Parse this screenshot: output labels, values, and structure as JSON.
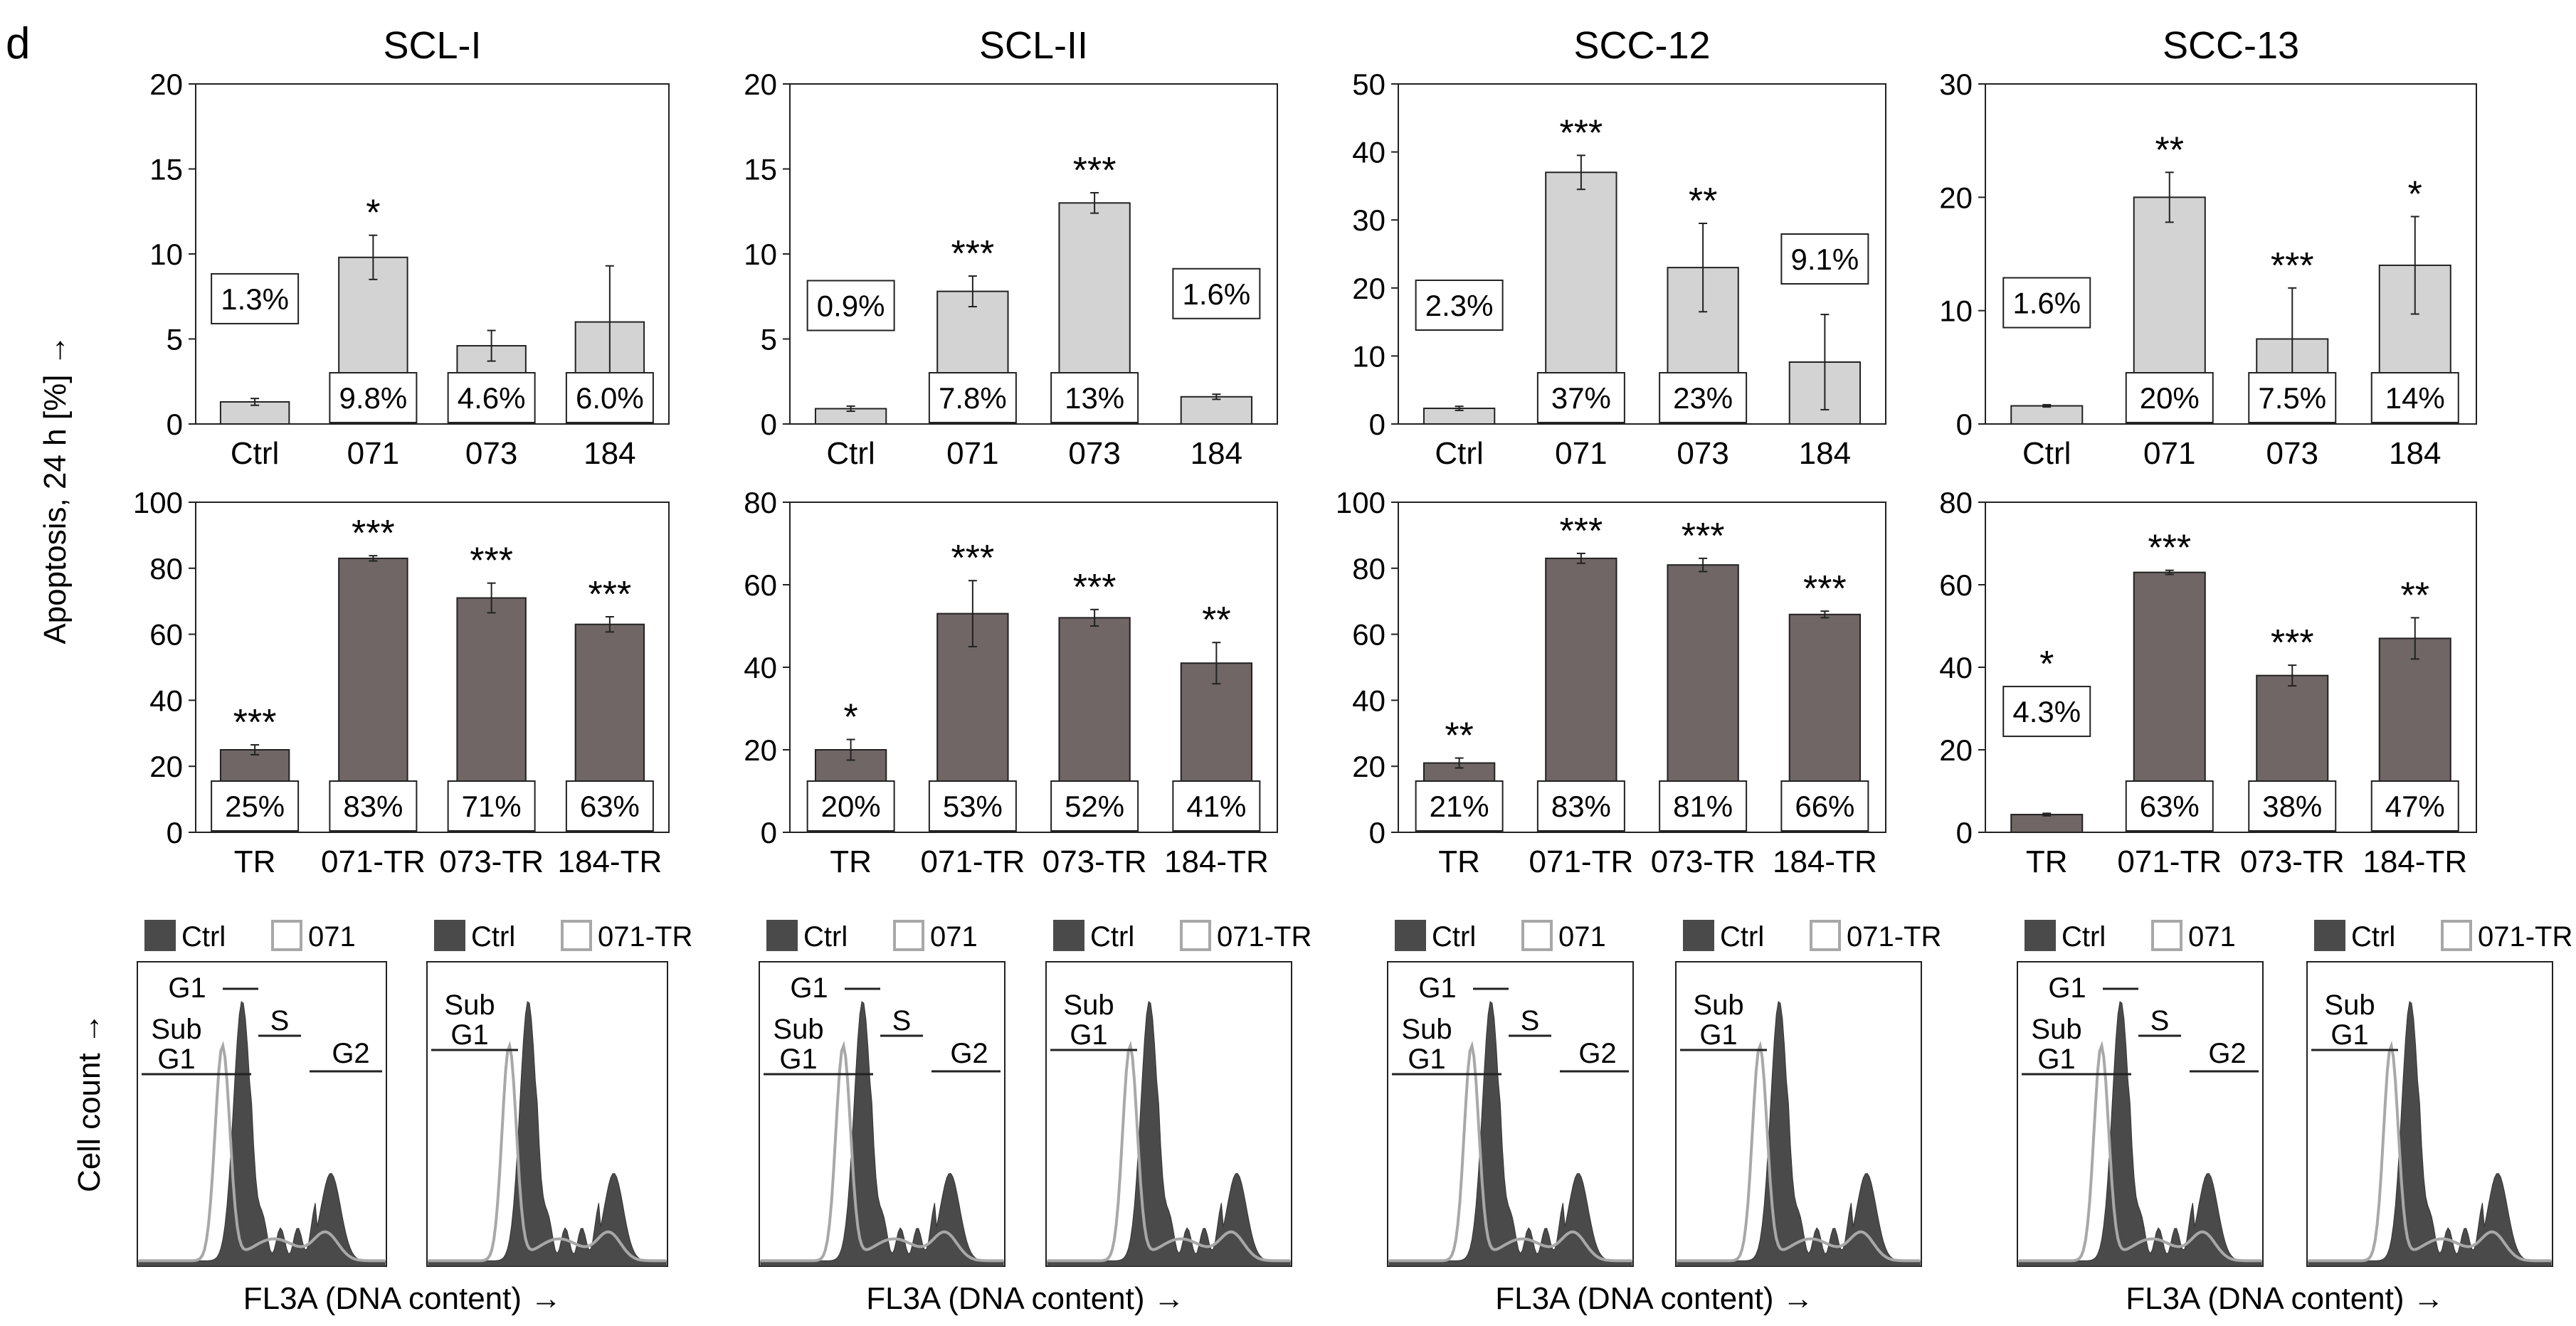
{
  "panel_letter": "d",
  "y_axis_label": "Apoptosis, 24 h [%] →",
  "cell_count_label": "Cell count →",
  "colors": {
    "light_bar": "#d3d3d3",
    "dark_bar": "#6f6665",
    "ctrl_fill": "#4a4a4a",
    "treated_line": "#a8a8a8"
  },
  "columns": [
    {
      "title": "SCL-I",
      "top": {
        "ylim": [
          0,
          20
        ],
        "yticks": [
          "0",
          "5",
          "10",
          "15",
          "20"
        ],
        "categories": [
          "Ctrl",
          "071",
          "073",
          "184"
        ],
        "values": [
          1.3,
          9.8,
          4.6,
          6.0
        ],
        "errors": [
          0.2,
          1.3,
          0.9,
          3.3
        ],
        "labels": [
          "1.3%",
          "9.8%",
          "4.6%",
          "6.0%"
        ],
        "stars": [
          "",
          "*",
          "",
          ""
        ]
      },
      "bottom": {
        "ylim": [
          0,
          100
        ],
        "yticks": [
          "0",
          "20",
          "40",
          "60",
          "80",
          "100"
        ],
        "categories": [
          "TR",
          "071-TR",
          "073-TR",
          "184-TR"
        ],
        "values": [
          25,
          83,
          71,
          63
        ],
        "errors": [
          1.5,
          0.8,
          4.5,
          2.3
        ],
        "labels": [
          "25%",
          "83%",
          "71%",
          "63%"
        ],
        "stars": [
          "***",
          "***",
          "***",
          "***"
        ]
      }
    },
    {
      "title": "SCL-II",
      "top": {
        "ylim": [
          0,
          20
        ],
        "yticks": [
          "0",
          "5",
          "10",
          "15",
          "20"
        ],
        "categories": [
          "Ctrl",
          "071",
          "073",
          "184"
        ],
        "values": [
          0.9,
          7.8,
          13,
          1.6
        ],
        "errors": [
          0.15,
          0.9,
          0.6,
          0.15
        ],
        "labels": [
          "0.9%",
          "7.8%",
          "13%",
          "1.6%"
        ],
        "stars": [
          "",
          "***",
          "***",
          ""
        ]
      },
      "bottom": {
        "ylim": [
          0,
          80
        ],
        "yticks": [
          "0",
          "20",
          "40",
          "60",
          "80"
        ],
        "categories": [
          "TR",
          "071-TR",
          "073-TR",
          "184-TR"
        ],
        "values": [
          20,
          53,
          52,
          41
        ],
        "errors": [
          2.5,
          8,
          2,
          5
        ],
        "labels": [
          "20%",
          "53%",
          "52%",
          "41%"
        ],
        "stars": [
          "*",
          "***",
          "***",
          "**"
        ]
      }
    },
    {
      "title": "SCC-12",
      "top": {
        "ylim": [
          0,
          50
        ],
        "yticks": [
          "0",
          "10",
          "20",
          "30",
          "40",
          "50"
        ],
        "categories": [
          "Ctrl",
          "071",
          "073",
          "184"
        ],
        "values": [
          2.3,
          37,
          23,
          9.1
        ],
        "errors": [
          0.3,
          2.5,
          6.5,
          7
        ],
        "labels": [
          "2.3%",
          "37%",
          "23%",
          "9.1%"
        ],
        "stars": [
          "",
          "***",
          "**",
          ""
        ]
      },
      "bottom": {
        "ylim": [
          0,
          100
        ],
        "yticks": [
          "0",
          "20",
          "40",
          "60",
          "80",
          "100"
        ],
        "categories": [
          "TR",
          "071-TR",
          "073-TR",
          "184-TR"
        ],
        "values": [
          21,
          83,
          81,
          66
        ],
        "errors": [
          1.5,
          1.5,
          2,
          1
        ],
        "labels": [
          "21%",
          "83%",
          "81%",
          "66%"
        ],
        "stars": [
          "**",
          "***",
          "***",
          "***"
        ]
      }
    },
    {
      "title": "SCC-13",
      "top": {
        "ylim": [
          0,
          30
        ],
        "yticks": [
          "0",
          "10",
          "20",
          "30"
        ],
        "categories": [
          "Ctrl",
          "071",
          "073",
          "184"
        ],
        "values": [
          1.6,
          20,
          7.5,
          14
        ],
        "errors": [
          0.1,
          2.2,
          4.5,
          4.3
        ],
        "labels": [
          "1.6%",
          "20%",
          "7.5%",
          "14%"
        ],
        "stars": [
          "",
          "**",
          "***",
          "*"
        ]
      },
      "bottom": {
        "ylim": [
          0,
          80
        ],
        "yticks": [
          "0",
          "20",
          "40",
          "60",
          "80"
        ],
        "categories": [
          "TR",
          "071-TR",
          "073-TR",
          "184-TR"
        ],
        "values": [
          4.3,
          63,
          38,
          47
        ],
        "errors": [
          0.3,
          0.5,
          2.5,
          5
        ],
        "labels": [
          "4.3%",
          "63%",
          "38%",
          "47%"
        ],
        "stars": [
          "*",
          "***",
          "***",
          "**"
        ]
      }
    }
  ],
  "histograms": {
    "xlabel": "FL3A (DNA content) →",
    "left_legend": [
      "Ctrl",
      "071"
    ],
    "right_legend": [
      "Ctrl",
      "071-TR"
    ],
    "gates": {
      "sub_g1": [
        "Sub",
        "G1"
      ],
      "g1": "G1",
      "s": "S",
      "g2": "G2"
    }
  }
}
